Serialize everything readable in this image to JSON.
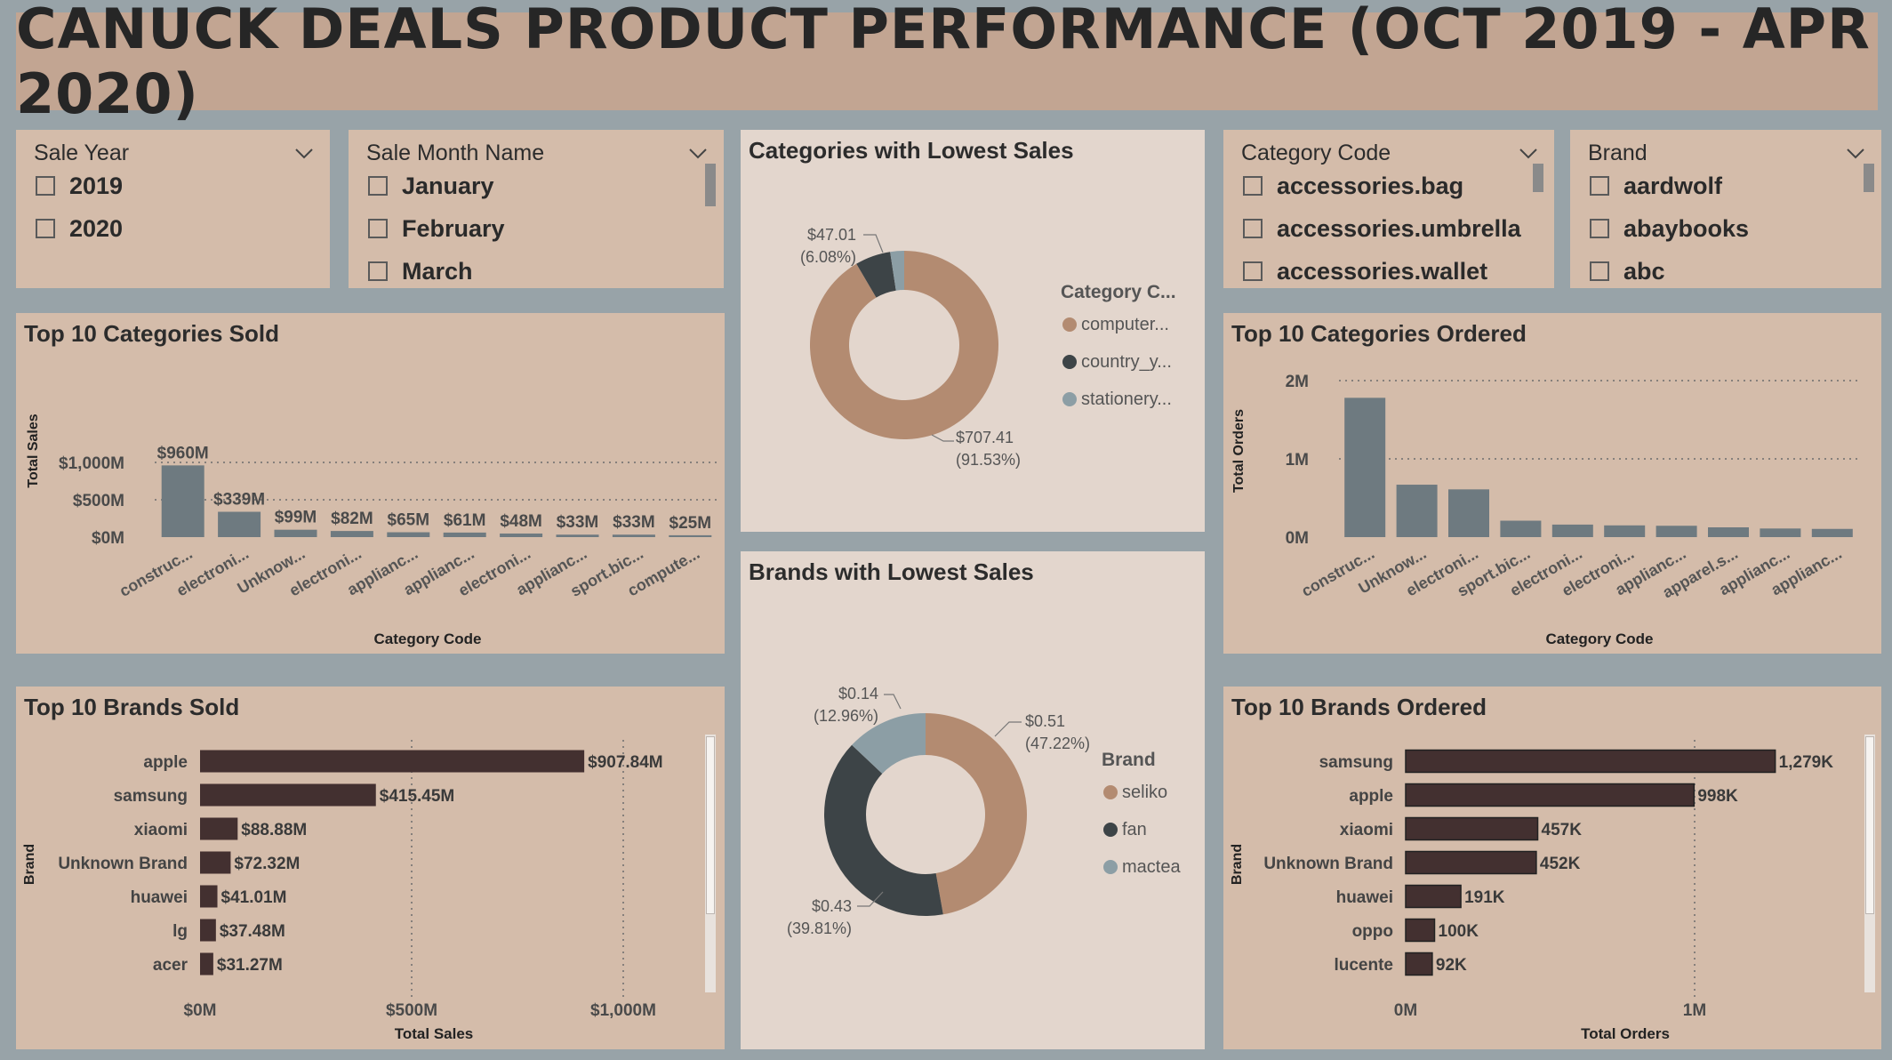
{
  "header": {
    "title": "CANUCK DEALS PRODUCT PERFORMANCE (OCT 2019 - APR 2020)"
  },
  "slicers": {
    "year": {
      "title": "Sale Year",
      "items": [
        "2019",
        "2020"
      ]
    },
    "month": {
      "title": "Sale Month Name",
      "items": [
        "January",
        "February",
        "March"
      ]
    },
    "category": {
      "title": "Category Code",
      "items": [
        "accessories.bag",
        "accessories.umbrella",
        "accessories.wallet"
      ]
    },
    "brand": {
      "title": "Brand",
      "items": [
        "aardwolf",
        "abaybooks",
        "abc"
      ]
    }
  },
  "colors": {
    "bar_gray": "#6e7a80",
    "bar_brown": "#433030",
    "donut_tan": "#b38b71",
    "donut_dark": "#3d4447",
    "donut_blue": "#8c9ea5"
  },
  "charts": {
    "top_categories_sold": {
      "title": "Top 10 Categories Sold"
    },
    "top_categories_ordered": {
      "title": "Top 10 Categories Ordered"
    },
    "lowest_categories": {
      "title": "Categories with Lowest Sales",
      "legend_title": "Category C..."
    },
    "lowest_brands": {
      "title": "Brands with Lowest Sales",
      "legend_title": "Brand"
    },
    "top_brands_sold": {
      "title": "Top 10 Brands Sold"
    },
    "top_brands_ordered": {
      "title": "Top 10 Brands Ordered"
    }
  },
  "chart_data": [
    {
      "id": "top_categories_sold",
      "type": "bar",
      "title": "Top 10 Categories Sold",
      "xlabel": "Category Code",
      "ylabel": "Total Sales",
      "ylim": [
        0,
        1000
      ],
      "yticks": [
        "$0M",
        "$500M",
        "$1,000M"
      ],
      "grid": true,
      "categories": [
        "construc...",
        "electroni...",
        "Unknow...",
        "electroni...",
        "applianc...",
        "applianc...",
        "electroni...",
        "applianc...",
        "sport.bic...",
        "compute..."
      ],
      "values": [
        960,
        339,
        99,
        82,
        65,
        61,
        48,
        33,
        33,
        25
      ],
      "labels": [
        "$960M",
        "$339M",
        "$99M",
        "$82M",
        "$65M",
        "$61M",
        "$48M",
        "$33M",
        "$33M",
        "$25M"
      ]
    },
    {
      "id": "top_categories_ordered",
      "type": "bar",
      "title": "Top 10 Categories Ordered",
      "xlabel": "Category Code",
      "ylabel": "Total Orders",
      "ylim": [
        0,
        2000000
      ],
      "yticks": [
        "0M",
        "1M",
        "2M"
      ],
      "grid": true,
      "categories": [
        "construc...",
        "Unknow...",
        "electroni...",
        "sport.bic...",
        "electroni...",
        "electroni...",
        "applianc...",
        "apparel.s...",
        "applianc...",
        "applianc..."
      ],
      "values": [
        1780000,
        670000,
        610000,
        210000,
        160000,
        150000,
        145000,
        125000,
        110000,
        105000
      ]
    },
    {
      "id": "lowest_categories",
      "type": "pie",
      "title": "Categories with Lowest Sales",
      "legend_title": "Category C...",
      "series": [
        {
          "name": "computer...",
          "value": 707.41,
          "label": "$707.41",
          "pct": "(91.53%)"
        },
        {
          "name": "country_y...",
          "value": 47.01,
          "label": "$47.01",
          "pct": "(6.08%)"
        },
        {
          "name": "stationery...",
          "value": 18.47,
          "label": "",
          "pct": ""
        }
      ]
    },
    {
      "id": "lowest_brands",
      "type": "pie",
      "title": "Brands with Lowest Sales",
      "legend_title": "Brand",
      "series": [
        {
          "name": "seliko",
          "value": 0.51,
          "label": "$0.51",
          "pct": "(47.22%)"
        },
        {
          "name": "fan",
          "value": 0.43,
          "label": "$0.43",
          "pct": "(39.81%)"
        },
        {
          "name": "mactea",
          "value": 0.14,
          "label": "$0.14",
          "pct": "(12.96%)"
        }
      ]
    },
    {
      "id": "top_brands_sold",
      "type": "bar",
      "orientation": "horizontal",
      "title": "Top 10 Brands Sold",
      "xlabel": "Total Sales",
      "ylabel": "Brand",
      "xlim": [
        0,
        1000
      ],
      "xticks": [
        "$0M",
        "$500M",
        "$1,000M"
      ],
      "grid": true,
      "categories": [
        "apple",
        "samsung",
        "xiaomi",
        "Unknown Brand",
        "huawei",
        "lg",
        "acer"
      ],
      "values": [
        907.84,
        415.45,
        88.88,
        72.32,
        41.01,
        37.48,
        31.27
      ],
      "labels": [
        "$907.84M",
        "$415.45M",
        "$88.88M",
        "$72.32M",
        "$41.01M",
        "$37.48M",
        "$31.27M"
      ]
    },
    {
      "id": "top_brands_ordered",
      "type": "bar",
      "orientation": "horizontal",
      "title": "Top 10 Brands Ordered",
      "xlabel": "Total Orders",
      "ylabel": "Brand",
      "xlim": [
        0,
        1400000
      ],
      "xticks": [
        "0M",
        "1M"
      ],
      "grid": true,
      "categories": [
        "samsung",
        "apple",
        "xiaomi",
        "Unknown Brand",
        "huawei",
        "oppo",
        "lucente"
      ],
      "values": [
        1279000,
        998000,
        457000,
        452000,
        191000,
        100000,
        92000
      ],
      "labels": [
        "1,279K",
        "998K",
        "457K",
        "452K",
        "191K",
        "100K",
        "92K"
      ]
    }
  ]
}
